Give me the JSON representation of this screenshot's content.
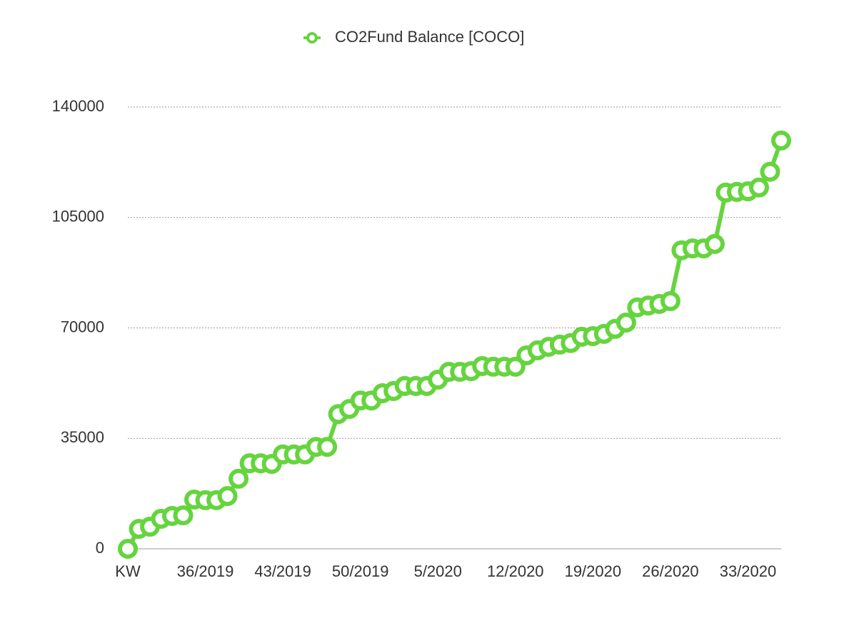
{
  "chart_data": {
    "type": "line",
    "categories": [
      "KW",
      null,
      null,
      null,
      null,
      null,
      null,
      "36/2019",
      null,
      null,
      null,
      null,
      null,
      null,
      "43/2019",
      null,
      null,
      null,
      null,
      null,
      null,
      "50/2019",
      null,
      null,
      null,
      null,
      null,
      null,
      "5/2020",
      null,
      null,
      null,
      null,
      null,
      null,
      "12/2020",
      null,
      null,
      null,
      null,
      null,
      null,
      "19/2020",
      null,
      null,
      null,
      null,
      null,
      null,
      "26/2020",
      null,
      null,
      null,
      null,
      null,
      null,
      "33/2020",
      null,
      null,
      null
    ],
    "series": [
      {
        "name": "CO2Fund Balance [COCO]",
        "color": "#66d43f",
        "values": [
          0,
          6300,
          7000,
          9500,
          10400,
          10600,
          15600,
          15400,
          15400,
          16700,
          22200,
          27100,
          27100,
          26900,
          29900,
          29900,
          29900,
          32300,
          32300,
          42700,
          44300,
          47000,
          47000,
          49300,
          50000,
          51600,
          51600,
          51600,
          53600,
          56100,
          56100,
          56300,
          57900,
          57700,
          57700,
          57700,
          61300,
          62900,
          64000,
          64700,
          65200,
          67200,
          67400,
          68100,
          69700,
          71700,
          76500,
          77100,
          77600,
          78500,
          94600,
          95200,
          95200,
          96600,
          112900,
          113100,
          113300,
          114500,
          119500,
          129400
        ]
      }
    ],
    "ylim": [
      0,
      140000
    ],
    "yticks": [
      0,
      35000,
      70000,
      105000,
      140000
    ],
    "grid": true,
    "legend": "top"
  }
}
